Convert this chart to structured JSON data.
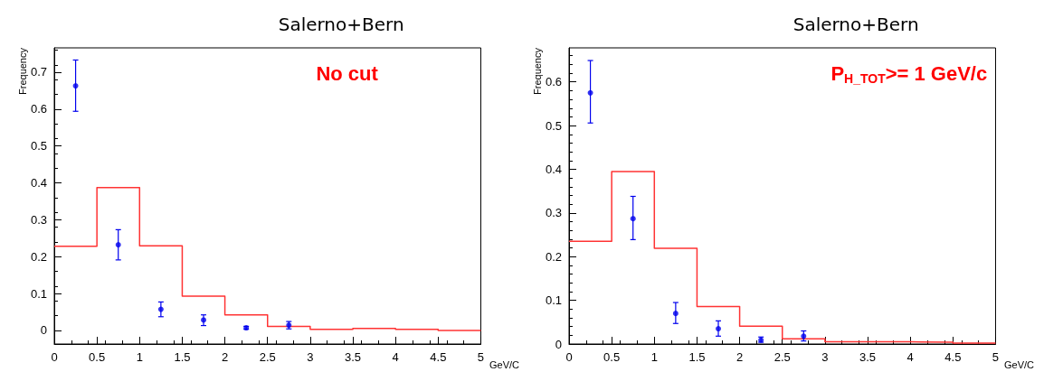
{
  "chart_data": [
    {
      "type": "histogram",
      "title": "Salerno+Bern",
      "xlabel": "GeV/C",
      "ylabel": "Frequency",
      "annotations": [
        "No cut"
      ],
      "bins": [
        0,
        0.5,
        1,
        1.5,
        2,
        2.5,
        3,
        3.5,
        4,
        4.5,
        5
      ],
      "values": [
        0.228,
        0.387,
        0.229,
        0.093,
        0.042,
        0.011,
        0.003,
        0.005,
        0.003,
        0.0
      ],
      "color": "#ff3333",
      "series": [
        {
          "type": "scatter",
          "color": "#0000ee",
          "x": [
            0.25,
            0.75,
            1.25,
            1.75,
            2.25,
            2.75
          ],
          "values": [
            0.663,
            0.232,
            0.057,
            0.028,
            0.007,
            0.014
          ],
          "errors": [
            [
              0.594,
              0.733
            ],
            [
              0.191,
              0.273
            ],
            [
              0.037,
              0.077
            ],
            [
              0.013,
              0.042
            ],
            [
              0.003,
              0.011
            ],
            [
              0.004,
              0.024
            ]
          ]
        }
      ],
      "xlim": [
        0,
        5
      ],
      "xticks": [
        0,
        0.5,
        1,
        1.5,
        2,
        2.5,
        3,
        3.5,
        4,
        4.5,
        5
      ],
      "ylim": [
        -0.037,
        0.766
      ],
      "yticks": [
        0,
        0.1,
        0.2,
        0.3,
        0.4,
        0.5,
        0.6,
        0.7
      ],
      "grid": false,
      "marker": "circle"
    },
    {
      "type": "histogram",
      "title": "Salerno+Bern",
      "xlabel": "GeV/C",
      "ylabel": "Frequency",
      "annotations": [
        "P$_{H_TOT}$>= 1 GeV/c"
      ],
      "bins": [
        0,
        0.5,
        1,
        1.5,
        2,
        2.5,
        3,
        3.5,
        4,
        4.5,
        5
      ],
      "values": [
        0.235,
        0.395,
        0.219,
        0.086,
        0.041,
        0.012,
        0.005,
        0.005,
        0.004,
        0.002
      ],
      "color": "#ff3333",
      "series": [
        {
          "type": "scatter",
          "color": "#0000ee",
          "x": [
            0.25,
            0.75,
            1.25,
            1.75,
            2.25,
            2.75
          ],
          "values": [
            0.575,
            0.287,
            0.07,
            0.035,
            0.009,
            0.018
          ],
          "errors": [
            [
              0.506,
              0.649
            ],
            [
              0.239,
              0.338
            ],
            [
              0.047,
              0.095
            ],
            [
              0.018,
              0.053
            ],
            [
              0.004,
              0.016
            ],
            [
              0.007,
              0.03
            ]
          ]
        }
      ],
      "xlim": [
        0,
        5
      ],
      "xticks": [
        0,
        0.5,
        1,
        1.5,
        2,
        2.5,
        3,
        3.5,
        4,
        4.5,
        5
      ],
      "ylim": [
        0,
        0.678
      ],
      "yticks": [
        0,
        0.1,
        0.2,
        0.3,
        0.4,
        0.5,
        0.6
      ],
      "grid": false,
      "marker": "circle"
    }
  ]
}
